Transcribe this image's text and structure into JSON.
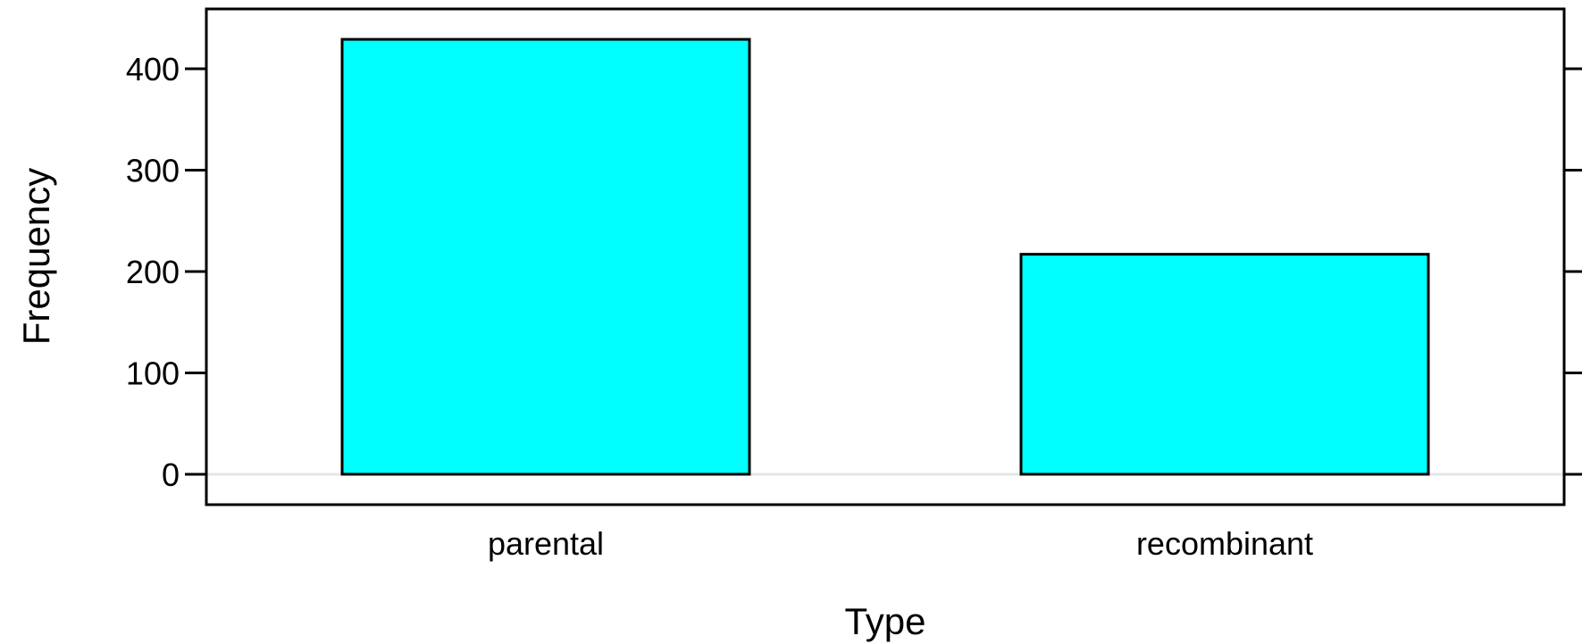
{
  "chart_data": {
    "type": "bar",
    "title": "",
    "xlabel": "Type",
    "ylabel": "Frequency",
    "categories": [
      "parental",
      "recombinant"
    ],
    "values": [
      429,
      217
    ],
    "ylim": [
      -30,
      459
    ],
    "yticks": [
      0,
      100,
      200,
      300,
      400
    ],
    "ytick_labels": [
      "0",
      "100",
      "200",
      "300",
      "400"
    ],
    "grid": false,
    "reference_line": 0,
    "colors": {
      "bar_fill": "#00ffff",
      "bar_stroke": "#000000",
      "reference_line": "#e6e6e6"
    }
  }
}
